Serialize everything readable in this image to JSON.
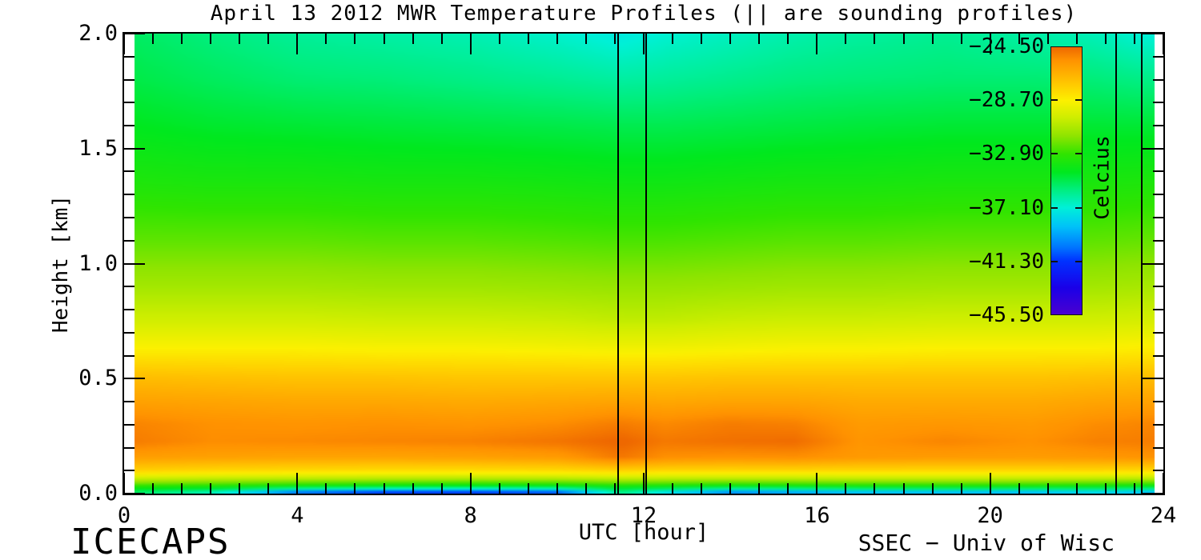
{
  "title": "April 13 2012 MWR Temperature Profiles (|| are sounding profiles)",
  "footer": {
    "left_credit": "ICECAPS",
    "right_credit": "SSEC − Univ of Wisc"
  },
  "axes": {
    "x": {
      "label": "UTC [hour]",
      "min": 0,
      "max": 24,
      "major_ticks": [
        0,
        4,
        8,
        12,
        16,
        20,
        24
      ],
      "tick_labels": [
        "0",
        "4",
        "8",
        "12",
        "16",
        "20",
        "24"
      ],
      "minor_step": 0.6666667
    },
    "y": {
      "label": "Height [km]",
      "min": 0,
      "max": 2,
      "major_ticks": [
        0,
        0.5,
        1,
        1.5,
        2
      ],
      "tick_labels": [
        "0.0",
        "0.5",
        "1.0",
        "1.5",
        "2.0"
      ],
      "minor_step": 0.1
    }
  },
  "colorbar": {
    "title": "Celcius",
    "tick_values": [
      -24.5,
      -28.7,
      -32.9,
      -37.1,
      -41.3,
      -45.5
    ],
    "tick_labels": [
      "−24.50",
      "−28.70",
      "−32.90",
      "−37.10",
      "−41.30",
      "−45.50"
    ]
  },
  "chart_data": {
    "type": "heatmap",
    "title": "April 13 2012 MWR Temperature Profiles (|| are sounding profiles)",
    "xlabel": "UTC [hour]",
    "ylabel": "Height [km]",
    "units": "Celcius",
    "x_range": [
      0,
      24
    ],
    "y_range": [
      0,
      2
    ],
    "data_extent_hours": [
      0.25,
      23.8
    ],
    "sounding_profile_times_utc": [
      11.4,
      12.05,
      22.9,
      23.5
    ],
    "x_hours": [
      0.25,
      2,
      4,
      6,
      8,
      10,
      11.5,
      12.5,
      14,
      15.5,
      17,
      19,
      21,
      22.5,
      23.75
    ],
    "y_heights_km": [
      0,
      0.02,
      0.05,
      0.09,
      0.15,
      0.22,
      0.3,
      0.4,
      0.5,
      0.62,
      0.75,
      0.9,
      1.1,
      1.35,
      1.6,
      1.8,
      2.0
    ],
    "temperature_c": [
      [
        -35.3,
        -33.6,
        -30.8,
        -27.8,
        -26.0,
        -25.0,
        -25.2,
        -26.1,
        -27.0,
        -28.6,
        -29.9,
        -31.0,
        -32.2,
        -33.4,
        -34.3,
        -34.9,
        -35.3
      ],
      [
        -36.5,
        -33.9,
        -31.0,
        -28.0,
        -26.1,
        -25.4,
        -25.5,
        -26.2,
        -27.1,
        -28.6,
        -29.9,
        -31.0,
        -32.2,
        -33.5,
        -34.5,
        -35.2,
        -35.7
      ],
      [
        -40.0,
        -34.6,
        -31.2,
        -28.1,
        -26.2,
        -25.3,
        -25.6,
        -26.3,
        -27.2,
        -28.6,
        -29.9,
        -31.0,
        -32.2,
        -33.5,
        -34.6,
        -35.5,
        -36.1
      ],
      [
        -41.0,
        -35.0,
        -31.3,
        -28.2,
        -26.2,
        -25.2,
        -25.5,
        -26.3,
        -27.2,
        -28.7,
        -30.0,
        -31.1,
        -32.3,
        -33.6,
        -34.7,
        -35.6,
        -36.3
      ],
      [
        -41.0,
        -35.2,
        -31.4,
        -28.2,
        -26.1,
        -25.1,
        -25.6,
        -26.4,
        -27.3,
        -28.7,
        -30.0,
        -31.1,
        -32.3,
        -33.6,
        -34.8,
        -35.8,
        -36.5
      ],
      [
        -40.5,
        -35.0,
        -31.3,
        -28.1,
        -25.9,
        -24.8,
        -25.4,
        -26.3,
        -27.3,
        -28.8,
        -30.1,
        -31.2,
        -32.4,
        -33.7,
        -34.9,
        -36.0,
        -36.9
      ],
      [
        -35.8,
        -34.2,
        -31.0,
        -27.9,
        -24.9,
        -24.4,
        -25.0,
        -26.2,
        -27.3,
        -28.9,
        -30.3,
        -31.3,
        -32.5,
        -33.8,
        -35.0,
        -36.2,
        -37.3
      ],
      [
        -37.5,
        -34.4,
        -31.1,
        -28.0,
        -25.5,
        -24.9,
        -25.3,
        -26.3,
        -27.3,
        -28.9,
        -30.3,
        -31.3,
        -32.5,
        -33.8,
        -35.0,
        -36.1,
        -37.0
      ],
      [
        -39.5,
        -34.8,
        -31.2,
        -28.0,
        -25.6,
        -24.7,
        -25.0,
        -26.2,
        -27.2,
        -28.8,
        -30.1,
        -31.2,
        -32.4,
        -33.7,
        -34.9,
        -35.9,
        -36.7
      ],
      [
        -39.0,
        -34.6,
        -31.1,
        -28.0,
        -25.5,
        -24.6,
        -25.1,
        -26.2,
        -27.2,
        -28.7,
        -30.0,
        -31.1,
        -32.3,
        -33.6,
        -34.8,
        -35.7,
        -36.4
      ],
      [
        -38.5,
        -34.3,
        -31.0,
        -28.0,
        -25.8,
        -25.6,
        -25.8,
        -26.4,
        -27.2,
        -28.7,
        -30.0,
        -31.1,
        -32.3,
        -33.6,
        -34.7,
        -35.6,
        -36.2
      ],
      [
        -38.5,
        -34.2,
        -31.0,
        -28.0,
        -25.9,
        -25.2,
        -25.7,
        -26.4,
        -27.2,
        -28.6,
        -29.9,
        -31.0,
        -32.2,
        -33.5,
        -34.6,
        -35.5,
        -36.0
      ],
      [
        -38.5,
        -34.3,
        -31.0,
        -28.0,
        -25.9,
        -25.5,
        -25.8,
        -26.4,
        -27.2,
        -28.6,
        -29.9,
        -31.0,
        -32.2,
        -33.5,
        -34.6,
        -35.5,
        -36.3
      ],
      [
        -37.8,
        -34.5,
        -31.1,
        -28.0,
        -25.8,
        -25.1,
        -25.4,
        -26.2,
        -27.1,
        -28.6,
        -29.9,
        -31.0,
        -32.2,
        -33.5,
        -34.6,
        -35.6,
        -36.6
      ],
      [
        -38.5,
        -34.8,
        -31.2,
        -28.1,
        -25.6,
        -25.0,
        -25.2,
        -26.1,
        -27.0,
        -28.5,
        -29.8,
        -30.9,
        -32.1,
        -33.4,
        -34.6,
        -35.8,
        -37.1
      ]
    ],
    "colormap_stops": [
      [
        -24.5,
        "#ee6800"
      ],
      [
        -25.5,
        "#ff9200"
      ],
      [
        -26.5,
        "#ffae00"
      ],
      [
        -27.6,
        "#ffcf00"
      ],
      [
        -28.7,
        "#fcf000"
      ],
      [
        -30.0,
        "#cfee00"
      ],
      [
        -31.5,
        "#8ee400"
      ],
      [
        -32.9,
        "#30e400"
      ],
      [
        -34.3,
        "#00e81e"
      ],
      [
        -35.7,
        "#00ee7e"
      ],
      [
        -37.1,
        "#00f0d8"
      ],
      [
        -38.6,
        "#00c2f8"
      ],
      [
        -40.2,
        "#0076ff"
      ],
      [
        -41.3,
        "#0032ff"
      ],
      [
        -43.4,
        "#1a00e8"
      ],
      [
        -45.5,
        "#4a00d0"
      ]
    ],
    "legend_position": "right-inside",
    "grid": false
  }
}
